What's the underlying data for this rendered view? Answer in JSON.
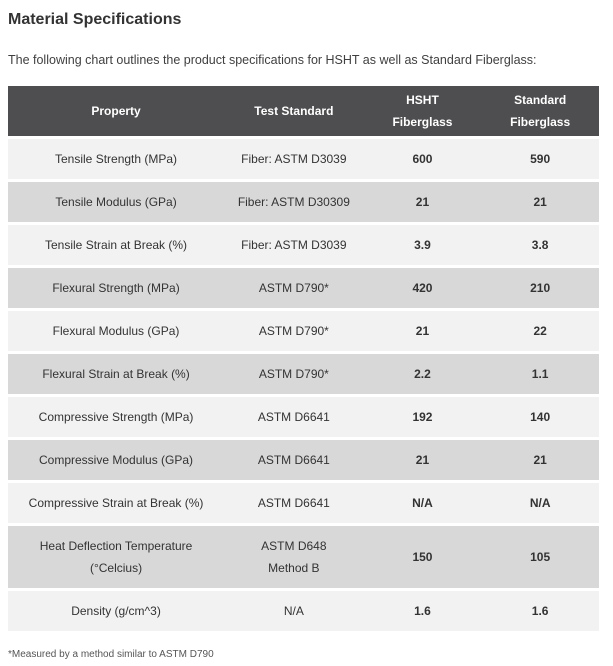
{
  "page": {
    "title": "Material Specifications",
    "intro": "The following chart outlines the product specifications for HSHT as well as Standard Fiberglass:",
    "footnote": "*Measured by a method similar to ASTM D790"
  },
  "colors": {
    "header_bg": "#4e4e50",
    "header_text": "#ffffff",
    "row_light": "#f2f2f2",
    "row_dark": "#d8d8d8",
    "body_text": "#333333"
  },
  "table": {
    "columns": [
      {
        "label_lines": [
          "Property"
        ]
      },
      {
        "label_lines": [
          "Test Standard"
        ]
      },
      {
        "label_lines": [
          "HSHT",
          "Fiberglass"
        ]
      },
      {
        "label_lines": [
          "Standard",
          "Fiberglass"
        ]
      }
    ],
    "rows": [
      {
        "property": [
          "Tensile Strength (MPa)"
        ],
        "test_standard": [
          "Fiber: ASTM D3039"
        ],
        "hsht": "600",
        "standard": "590"
      },
      {
        "property": [
          "Tensile Modulus (GPa)"
        ],
        "test_standard": [
          "Fiber: ASTM D30309"
        ],
        "hsht": "21",
        "standard": "21"
      },
      {
        "property": [
          "Tensile Strain at Break (%)"
        ],
        "test_standard": [
          "Fiber: ASTM D3039"
        ],
        "hsht": "3.9",
        "standard": "3.8"
      },
      {
        "property": [
          "Flexural Strength (MPa)"
        ],
        "test_standard": [
          "ASTM D790*"
        ],
        "hsht": "420",
        "standard": "210"
      },
      {
        "property": [
          "Flexural Modulus (GPa)"
        ],
        "test_standard": [
          "ASTM D790*"
        ],
        "hsht": "21",
        "standard": "22"
      },
      {
        "property": [
          "Flexural Strain at Break (%)"
        ],
        "test_standard": [
          "ASTM D790*"
        ],
        "hsht": "2.2",
        "standard": "1.1"
      },
      {
        "property": [
          "Compressive Strength (MPa)"
        ],
        "test_standard": [
          "ASTM D6641"
        ],
        "hsht": "192",
        "standard": "140"
      },
      {
        "property": [
          "Compressive Modulus (GPa)"
        ],
        "test_standard": [
          "ASTM D6641"
        ],
        "hsht": "21",
        "standard": "21"
      },
      {
        "property": [
          "Compressive Strain at Break (%)"
        ],
        "test_standard": [
          "ASTM D6641"
        ],
        "hsht": "N/A",
        "standard": "N/A"
      },
      {
        "property": [
          "Heat Deflection Temperature",
          "(°Celcius)"
        ],
        "test_standard": [
          "ASTM D648",
          "Method B"
        ],
        "hsht": "150",
        "standard": "105"
      },
      {
        "property": [
          "Density (g/cm^3)"
        ],
        "test_standard": [
          "N/A"
        ],
        "hsht": "1.6",
        "standard": "1.6"
      }
    ]
  }
}
